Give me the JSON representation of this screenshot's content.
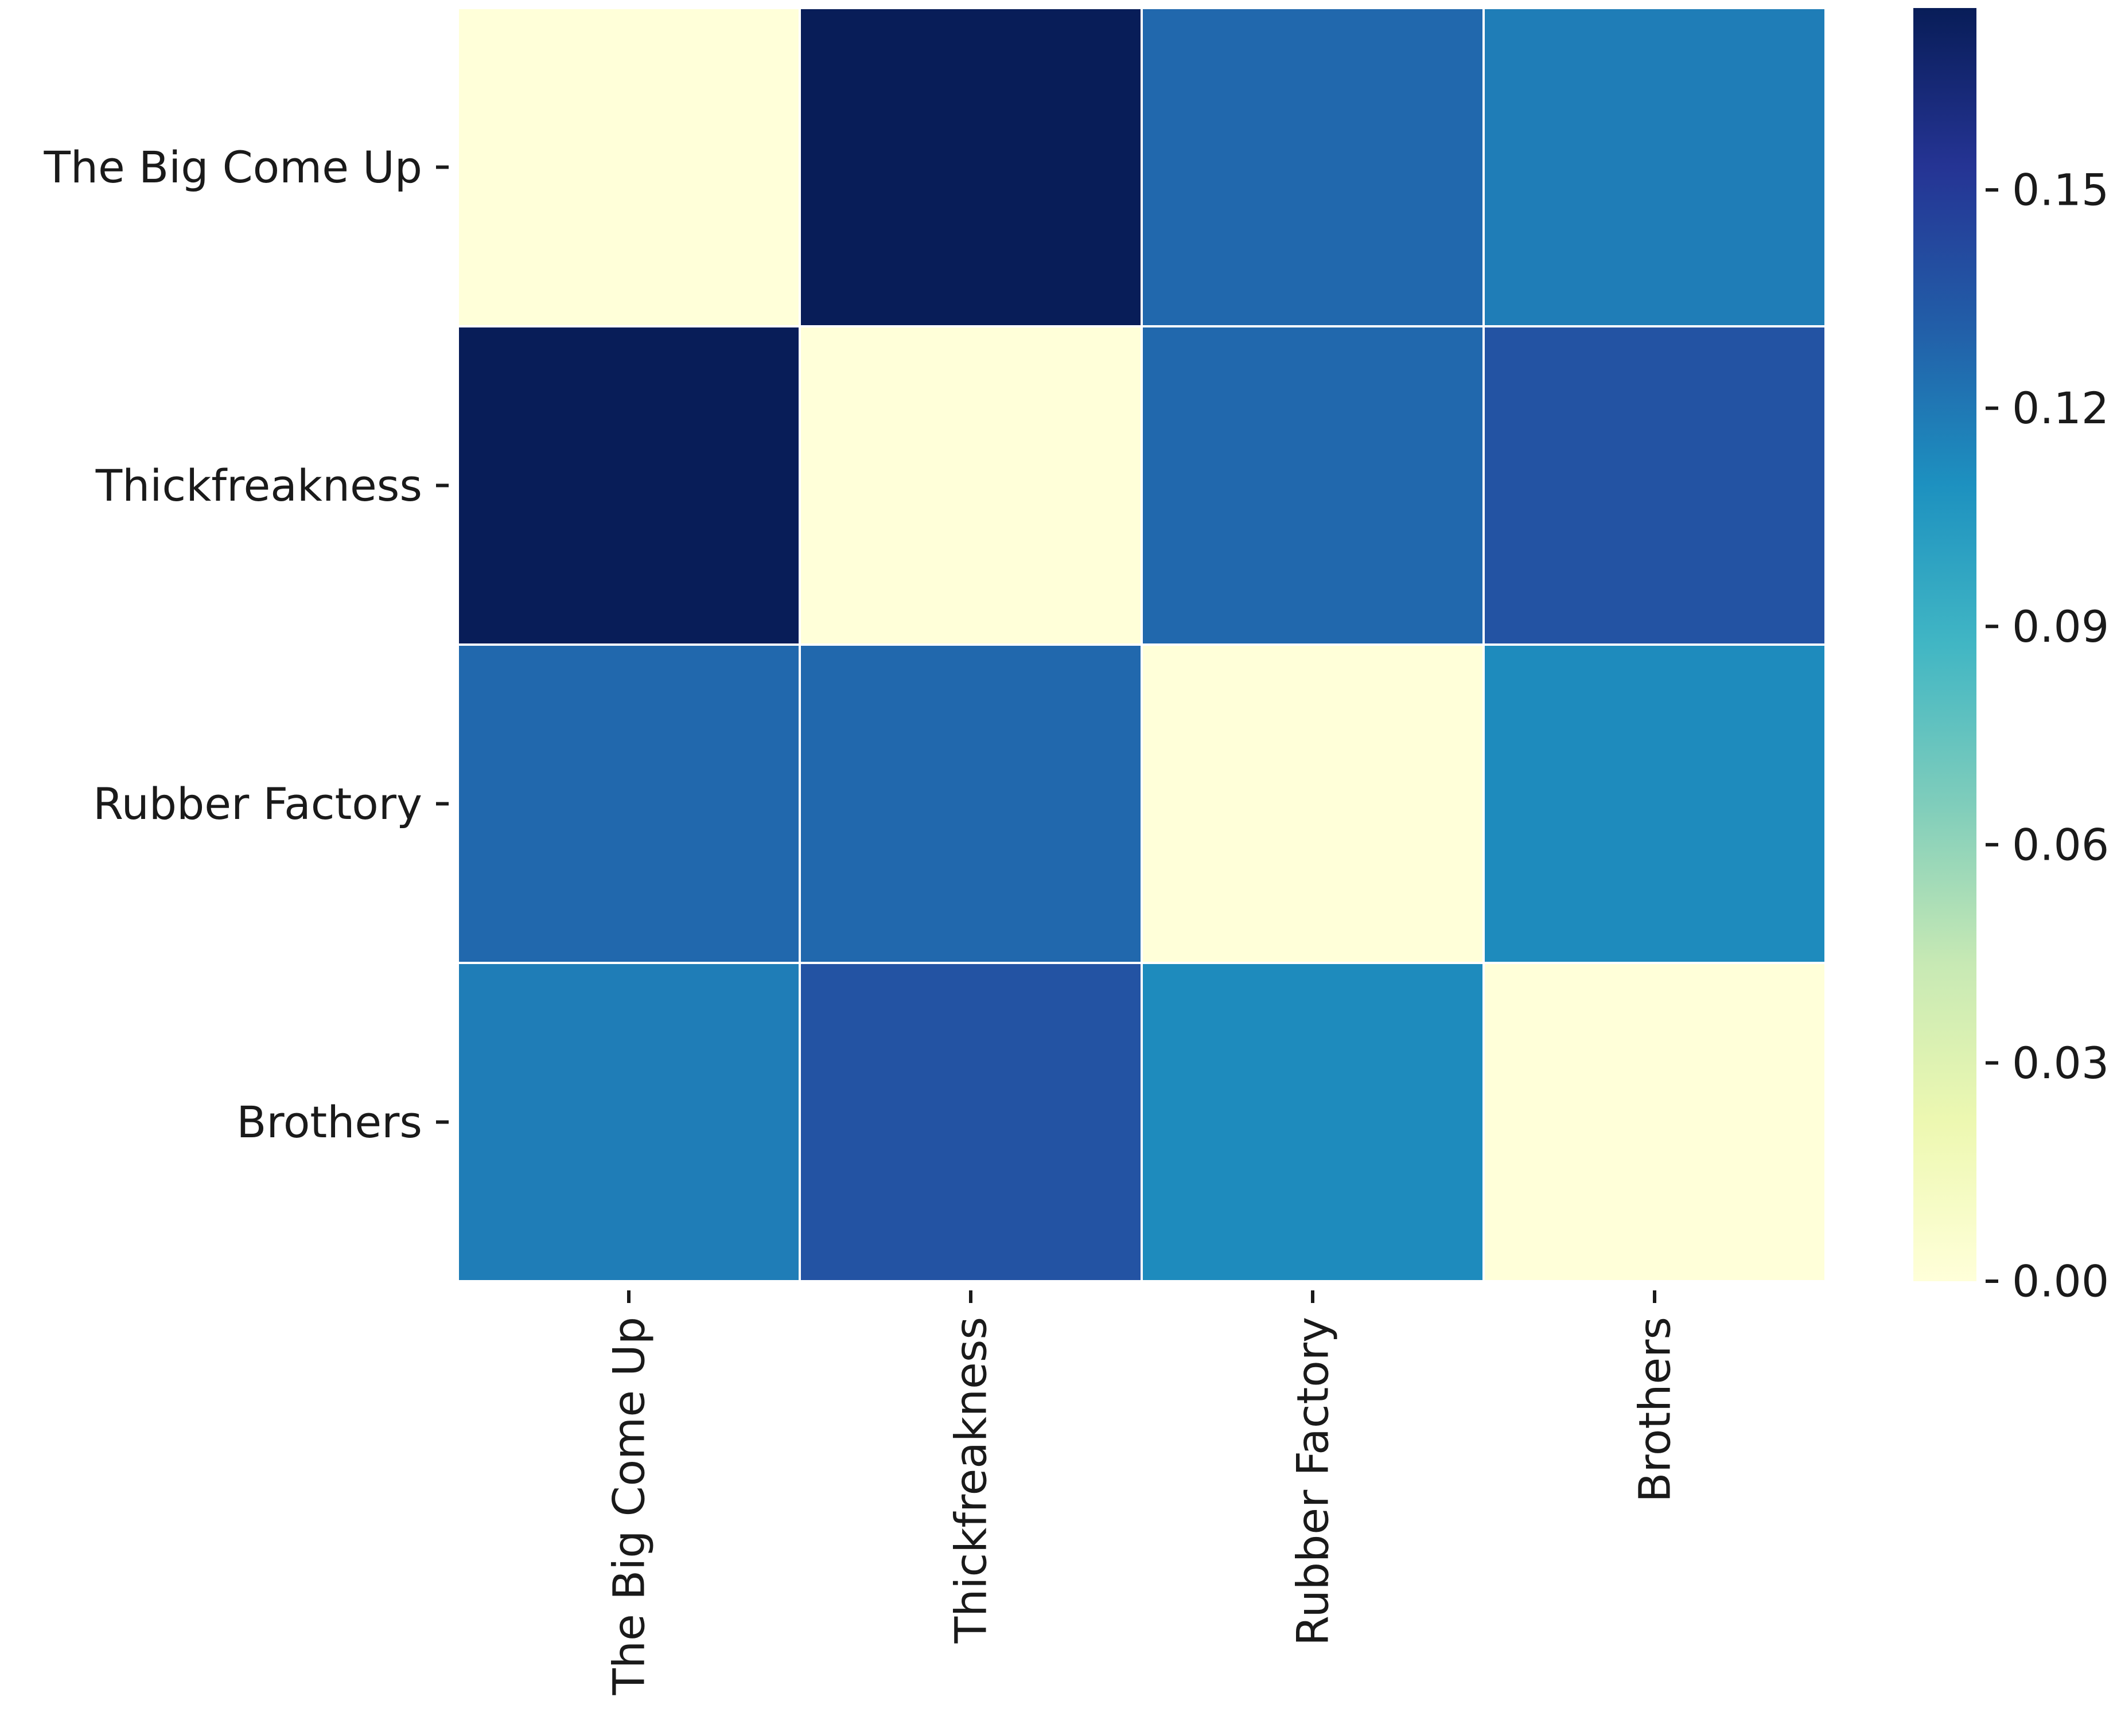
{
  "chart_data": {
    "type": "heatmap",
    "title": "",
    "xlabel": "",
    "ylabel": "",
    "rows": [
      "The Big Come Up",
      "Thickfreakness",
      "Rubber Factory",
      "Brothers"
    ],
    "columns": [
      "The Big Come Up",
      "Thickfreakness",
      "Rubber Factory",
      "Brothers"
    ],
    "values": [
      [
        0.0,
        0.175,
        0.127,
        0.118
      ],
      [
        0.175,
        0.0,
        0.127,
        0.137
      ],
      [
        0.127,
        0.127,
        0.0,
        0.112
      ],
      [
        0.118,
        0.137,
        0.112,
        0.0
      ]
    ],
    "colorbar": {
      "colormap": "YlGnBu",
      "range": [
        0,
        0.175
      ],
      "ticks": [
        0.0,
        0.03,
        0.06,
        0.09,
        0.12,
        0.15
      ],
      "tick_labels": [
        "0.00",
        "0.03",
        "0.06",
        "0.09",
        "0.12",
        "0.15"
      ],
      "stops": [
        "#ffffd9",
        "#edf8b1",
        "#c7e9b4",
        "#7fcdbb",
        "#41b6c4",
        "#1d91c0",
        "#225ea8",
        "#253494",
        "#081d58"
      ]
    },
    "cell_border_color": "#ffffff"
  }
}
